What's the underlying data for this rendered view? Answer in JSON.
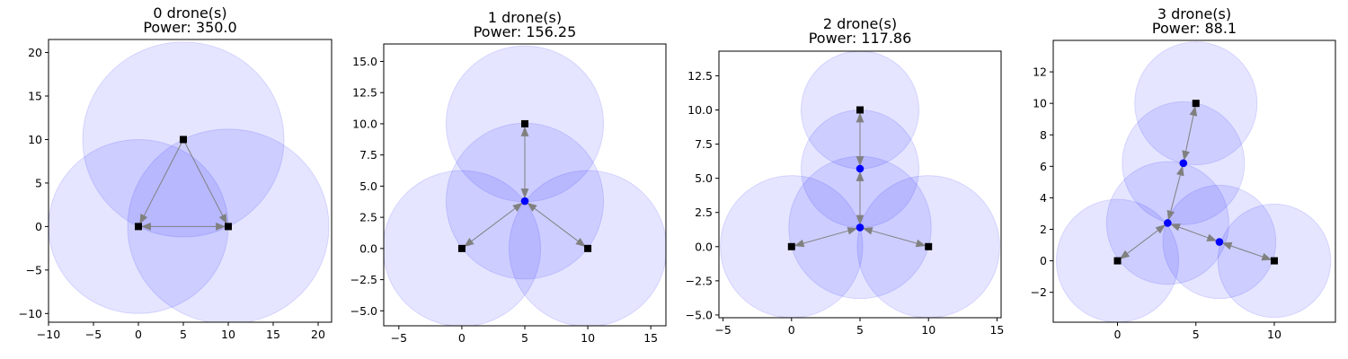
{
  "chart_data": [
    {
      "type": "scatter",
      "title_line1": "0 drone(s)",
      "title_line2": "Power: 350.0",
      "xlim": [
        -10,
        21.5
      ],
      "ylim": [
        -11,
        21.5
      ],
      "xticks": [
        -10,
        -5,
        0,
        5,
        10,
        15,
        20
      ],
      "yticks": [
        -10,
        -5,
        0,
        5,
        10,
        15,
        20
      ],
      "xtick_labels": [
        "−10",
        "−5",
        "0",
        "5",
        "10",
        "15",
        "20"
      ],
      "ytick_labels": [
        "−10",
        "−5",
        "0",
        "5",
        "10",
        "15",
        "20"
      ],
      "grid": false,
      "circles": [
        {
          "x": 5,
          "y": 10,
          "r": 11.2
        },
        {
          "x": 0,
          "y": 0,
          "r": 10.0
        },
        {
          "x": 10,
          "y": 0,
          "r": 11.2
        }
      ],
      "nodes": [
        {
          "x": 5,
          "y": 10,
          "kind": "user"
        },
        {
          "x": 0,
          "y": 0,
          "kind": "user"
        },
        {
          "x": 10,
          "y": 0,
          "kind": "user"
        }
      ],
      "edges": [
        {
          "from": [
            5,
            10
          ],
          "to": [
            0,
            0
          ],
          "arrow_end": true
        },
        {
          "from": [
            5,
            10
          ],
          "to": [
            10,
            0
          ],
          "arrow_end": true
        },
        {
          "from": [
            0,
            0
          ],
          "to": [
            10,
            0
          ],
          "arrow_end": true,
          "arrow_start": true
        }
      ]
    },
    {
      "type": "scatter",
      "title_line1": "1 drone(s)",
      "title_line2": "Power: 156.25",
      "xlim": [
        -6.2,
        16.2
      ],
      "ylim": [
        -6.2,
        16.4
      ],
      "xticks": [
        -5,
        0,
        5,
        10,
        15
      ],
      "yticks": [
        -5.0,
        -2.5,
        0.0,
        2.5,
        5.0,
        7.5,
        10.0,
        12.5,
        15.0
      ],
      "xtick_labels": [
        "−5",
        "0",
        "5",
        "10",
        "15"
      ],
      "ytick_labels": [
        "−5.0",
        "−2.5",
        "0.0",
        "2.5",
        "5.0",
        "7.5",
        "10.0",
        "12.5",
        "15.0"
      ],
      "grid": false,
      "circles": [
        {
          "x": 5,
          "y": 10,
          "r": 6.25
        },
        {
          "x": 0,
          "y": 0,
          "r": 6.25
        },
        {
          "x": 10,
          "y": 0,
          "r": 6.25
        },
        {
          "x": 5,
          "y": 3.8,
          "r": 6.25
        }
      ],
      "nodes": [
        {
          "x": 5,
          "y": 10,
          "kind": "user"
        },
        {
          "x": 0,
          "y": 0,
          "kind": "user"
        },
        {
          "x": 10,
          "y": 0,
          "kind": "user"
        },
        {
          "x": 5,
          "y": 3.8,
          "kind": "drone"
        }
      ],
      "edges": [
        {
          "from": [
            5,
            3.8
          ],
          "to": [
            5,
            10
          ],
          "arrow_end": true,
          "arrow_start": true
        },
        {
          "from": [
            5,
            3.8
          ],
          "to": [
            0,
            0
          ],
          "arrow_end": true,
          "arrow_start": true
        },
        {
          "from": [
            5,
            3.8
          ],
          "to": [
            10,
            0
          ],
          "arrow_end": true,
          "arrow_start": true
        }
      ]
    },
    {
      "type": "scatter",
      "title_line1": "2 drone(s)",
      "title_line2": "Power: 117.86",
      "xlim": [
        -5.3,
        15.3
      ],
      "ylim": [
        -5.2,
        14.3
      ],
      "xticks": [
        -5,
        0,
        5,
        10,
        15
      ],
      "yticks": [
        -5.0,
        -2.5,
        0.0,
        2.5,
        5.0,
        7.5,
        10.0,
        12.5
      ],
      "xtick_labels": [
        "−5",
        "0",
        "5",
        "10",
        "15"
      ],
      "ytick_labels": [
        "−5.0",
        "−2.5",
        "0.0",
        "2.5",
        "5.0",
        "7.5",
        "10.0",
        "12.5"
      ],
      "grid": false,
      "circles": [
        {
          "x": 5,
          "y": 10,
          "r": 4.3
        },
        {
          "x": 5,
          "y": 5.7,
          "r": 4.3
        },
        {
          "x": 0,
          "y": 0,
          "r": 5.2
        },
        {
          "x": 10,
          "y": 0,
          "r": 5.2
        },
        {
          "x": 5,
          "y": 1.4,
          "r": 5.2
        }
      ],
      "nodes": [
        {
          "x": 5,
          "y": 10,
          "kind": "user"
        },
        {
          "x": 0,
          "y": 0,
          "kind": "user"
        },
        {
          "x": 10,
          "y": 0,
          "kind": "user"
        },
        {
          "x": 5,
          "y": 5.7,
          "kind": "drone"
        },
        {
          "x": 5,
          "y": 1.4,
          "kind": "drone"
        }
      ],
      "edges": [
        {
          "from": [
            5,
            5.7
          ],
          "to": [
            5,
            10
          ],
          "arrow_end": true,
          "arrow_start": true
        },
        {
          "from": [
            5,
            1.4
          ],
          "to": [
            5,
            5.7
          ],
          "arrow_end": true,
          "arrow_start": true
        },
        {
          "from": [
            5,
            1.4
          ],
          "to": [
            0,
            0
          ],
          "arrow_end": true,
          "arrow_start": true
        },
        {
          "from": [
            5,
            1.4
          ],
          "to": [
            10,
            0
          ],
          "arrow_end": true,
          "arrow_start": true
        }
      ]
    },
    {
      "type": "scatter",
      "title_line1": "3 drone(s)",
      "title_line2": "Power: 88.1",
      "xlim": [
        -4.1,
        13.9
      ],
      "ylim": [
        -3.9,
        14.0
      ],
      "xticks": [
        0,
        5,
        10
      ],
      "yticks": [
        -2,
        0,
        2,
        4,
        6,
        8,
        10,
        12
      ],
      "xtick_labels": [
        "0",
        "5",
        "10"
      ],
      "ytick_labels": [
        "−2",
        "0",
        "2",
        "4",
        "6",
        "8",
        "10",
        "12"
      ],
      "grid": false,
      "circles": [
        {
          "x": 5,
          "y": 10,
          "r": 3.9
        },
        {
          "x": 4.2,
          "y": 6.2,
          "r": 3.9
        },
        {
          "x": 3.2,
          "y": 2.4,
          "r": 3.9
        },
        {
          "x": 6.5,
          "y": 1.2,
          "r": 3.6
        },
        {
          "x": 0,
          "y": 0,
          "r": 3.9
        },
        {
          "x": 10,
          "y": 0,
          "r": 3.6
        }
      ],
      "nodes": [
        {
          "x": 5,
          "y": 10,
          "kind": "user"
        },
        {
          "x": 0,
          "y": 0,
          "kind": "user"
        },
        {
          "x": 10,
          "y": 0,
          "kind": "user"
        },
        {
          "x": 4.2,
          "y": 6.2,
          "kind": "drone"
        },
        {
          "x": 3.2,
          "y": 2.4,
          "kind": "drone"
        },
        {
          "x": 6.5,
          "y": 1.2,
          "kind": "drone"
        }
      ],
      "edges": [
        {
          "from": [
            4.2,
            6.2
          ],
          "to": [
            5,
            10
          ],
          "arrow_end": true,
          "arrow_start": true
        },
        {
          "from": [
            3.2,
            2.4
          ],
          "to": [
            4.2,
            6.2
          ],
          "arrow_end": true,
          "arrow_start": true
        },
        {
          "from": [
            3.2,
            2.4
          ],
          "to": [
            0,
            0
          ],
          "arrow_end": true,
          "arrow_start": true
        },
        {
          "from": [
            3.2,
            2.4
          ],
          "to": [
            6.5,
            1.2
          ],
          "arrow_end": true,
          "arrow_start": true
        },
        {
          "from": [
            6.5,
            1.2
          ],
          "to": [
            10,
            0
          ],
          "arrow_end": true,
          "arrow_start": true
        }
      ]
    }
  ],
  "colors": {
    "coverage_fill": "#0000ff",
    "coverage_edge": "#0000ff",
    "user_marker": "#000000",
    "drone_marker": "#0000ff",
    "edge": "#808080",
    "axes": "#000000"
  }
}
